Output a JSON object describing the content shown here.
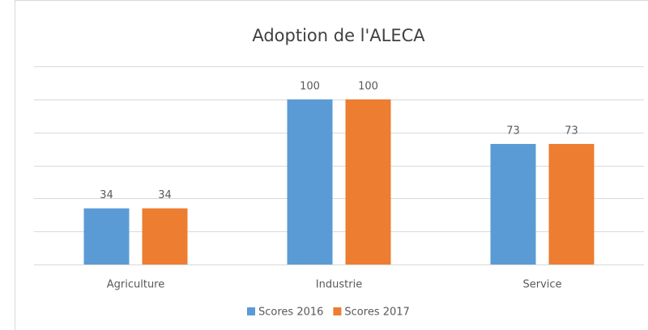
{
  "chart_data": {
    "type": "bar",
    "title": "Adoption de l'ALECA",
    "categories": [
      "Agriculture",
      "Industrie",
      "Service"
    ],
    "series": [
      {
        "name": "Scores 2016",
        "color": "#5b9bd5",
        "values": [
          34,
          100,
          73
        ]
      },
      {
        "name": "Scores 2017",
        "color": "#ed7d31",
        "values": [
          34,
          100,
          73
        ]
      }
    ],
    "ylim": [
      0,
      120
    ],
    "yticks": [
      0,
      20,
      40,
      60,
      80,
      100,
      120
    ],
    "grid": true,
    "legend": "bottom"
  }
}
